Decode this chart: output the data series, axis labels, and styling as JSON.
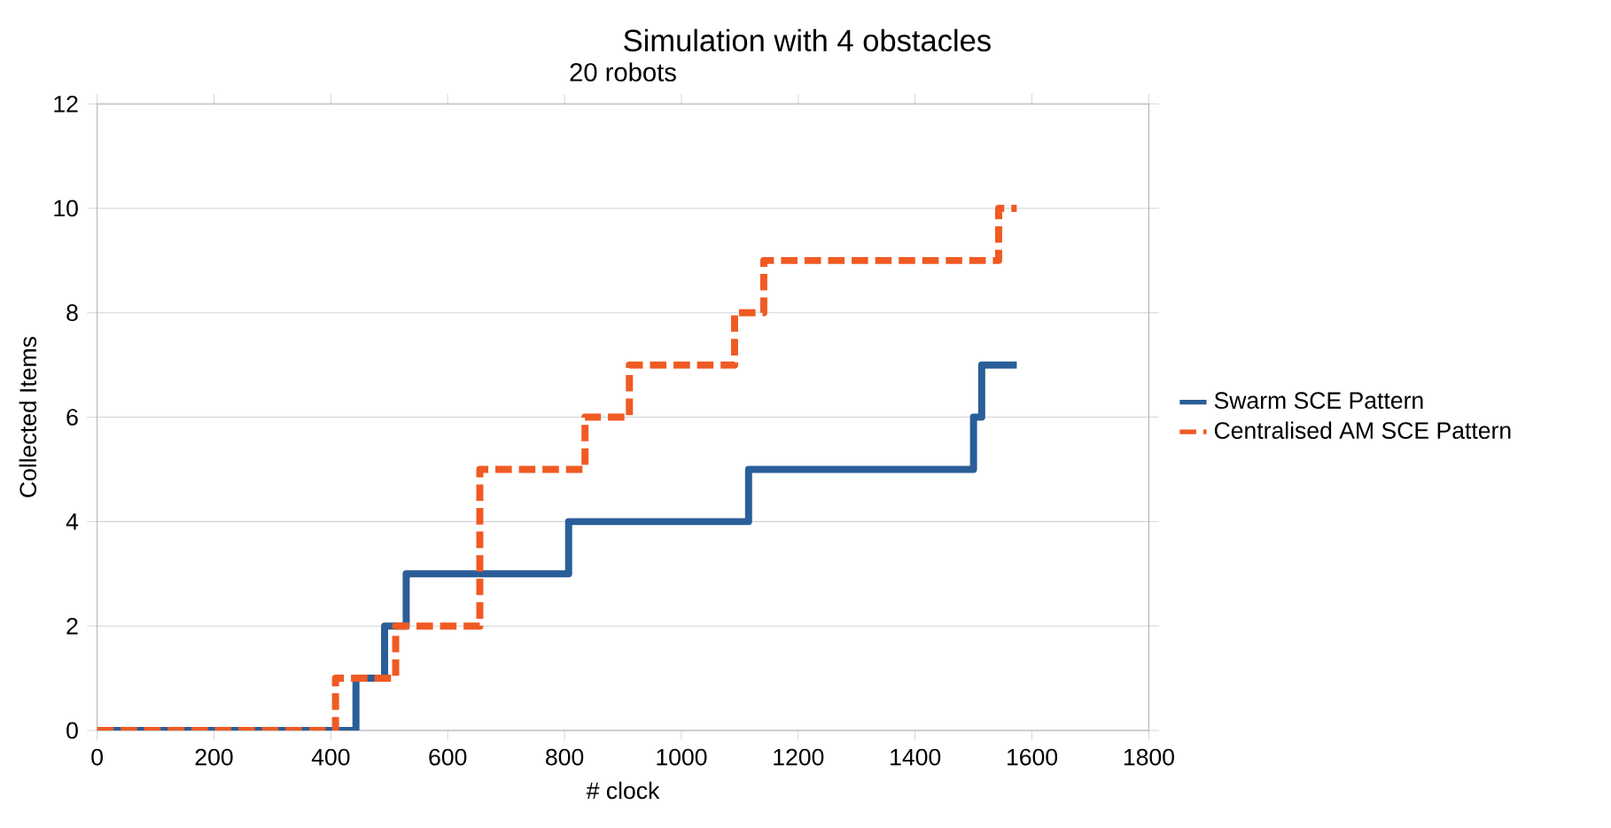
{
  "chart_data": {
    "type": "step",
    "title": "Simulation with 4 obstacles",
    "subtitle": "20 robots",
    "xlabel": "# clock",
    "ylabel": "Collected Items",
    "series": [
      {
        "name": "Swarm SCE Pattern",
        "color": "#2a5e98",
        "line_style": "solid",
        "x": [
          0,
          443,
          492,
          529,
          807,
          1115,
          1500,
          1514,
          1574
        ],
        "values": [
          0,
          1,
          2,
          3,
          4,
          5,
          6,
          7,
          7
        ]
      },
      {
        "name": "Centralised AM SCE Pattern",
        "color": "#f05a23",
        "line_style": "dashed",
        "x": [
          0,
          408,
          511,
          655,
          835,
          911,
          1091,
          1141,
          1543,
          1574
        ],
        "values": [
          0,
          1,
          2,
          5,
          6,
          7,
          8,
          9,
          10,
          10
        ]
      }
    ],
    "xlim": [
      0,
      1800
    ],
    "xticks": [
      0,
      200,
      400,
      600,
      800,
      1000,
      1200,
      1400,
      1600,
      1800
    ],
    "ylim": [
      0,
      12
    ],
    "yticks": [
      0,
      2,
      4,
      6,
      8,
      10,
      12
    ],
    "grid": "y",
    "legend": "right"
  }
}
